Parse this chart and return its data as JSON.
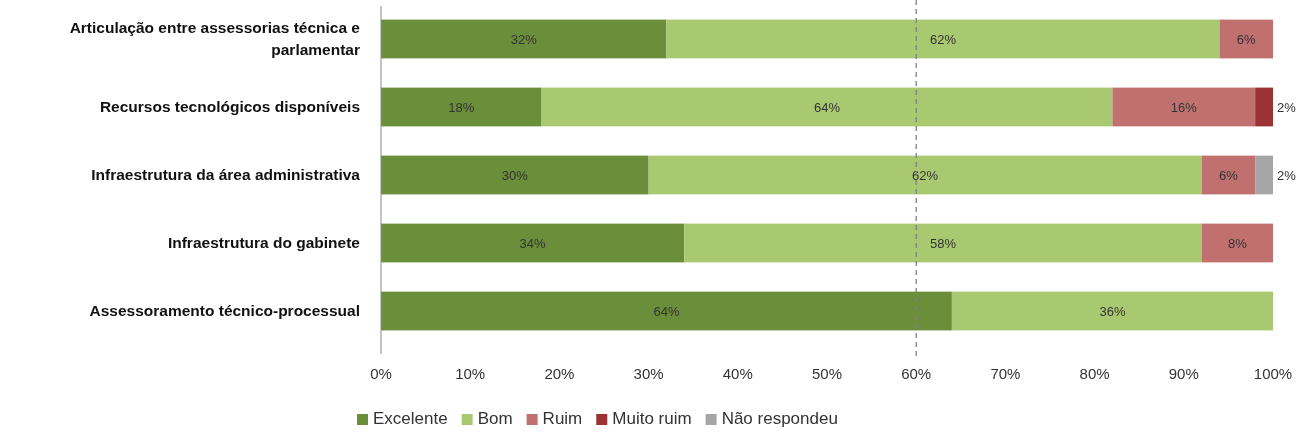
{
  "chart_data": {
    "type": "bar",
    "orientation": "horizontal",
    "stacked": true,
    "categories": [
      "Articulação entre assessorias técnica e parlamentar",
      "Recursos tecnológicos disponíveis",
      "Infraestrutura da área administrativa",
      "Infraestrutura do gabinete",
      "Assessoramento técnico-processual"
    ],
    "series": [
      {
        "name": "Excelente",
        "color": "#6b8e3a",
        "values": [
          32,
          18,
          30,
          34,
          64
        ],
        "value_labels": [
          "32%",
          "18%",
          "30%",
          "34%",
          "64%"
        ]
      },
      {
        "name": "Bom",
        "color": "#a9c971",
        "values": [
          62,
          64,
          62,
          58,
          36
        ],
        "value_labels": [
          "62%",
          "64%",
          "62%",
          "58%",
          "36%"
        ]
      },
      {
        "name": "Ruim",
        "color": "#c0706f",
        "values": [
          6,
          16,
          6,
          8,
          null
        ],
        "value_labels": [
          "6%",
          "16%",
          "6%",
          "8%",
          null
        ]
      },
      {
        "name": "Muito ruim",
        "color": "#9b3335",
        "values": [
          null,
          2,
          null,
          null,
          null
        ],
        "value_labels": [
          null,
          "2%",
          null,
          null,
          null
        ]
      },
      {
        "name": "Não respondeu",
        "color": "#a6a6a6",
        "values": [
          null,
          null,
          2,
          null,
          null
        ],
        "value_labels": [
          null,
          null,
          "2%",
          null,
          null
        ]
      }
    ],
    "xlim": [
      0,
      100
    ],
    "xticks": [
      {
        "value": 0,
        "label": "0%"
      },
      {
        "value": 10,
        "label": "10%"
      },
      {
        "value": 20,
        "label": "20%"
      },
      {
        "value": 30,
        "label": "30%"
      },
      {
        "value": 40,
        "label": "40%"
      },
      {
        "value": 50,
        "label": "50%"
      },
      {
        "value": 60,
        "label": "60%"
      },
      {
        "value": 70,
        "label": "70%"
      },
      {
        "value": 80,
        "label": "80%"
      },
      {
        "value": 90,
        "label": "90%"
      },
      {
        "value": 100,
        "label": "100%"
      }
    ],
    "ref_lines": [
      {
        "axis": "x",
        "value": 60,
        "color": "#808080",
        "line_style": "dashed"
      }
    ],
    "grid": false,
    "legend": "bottom"
  }
}
